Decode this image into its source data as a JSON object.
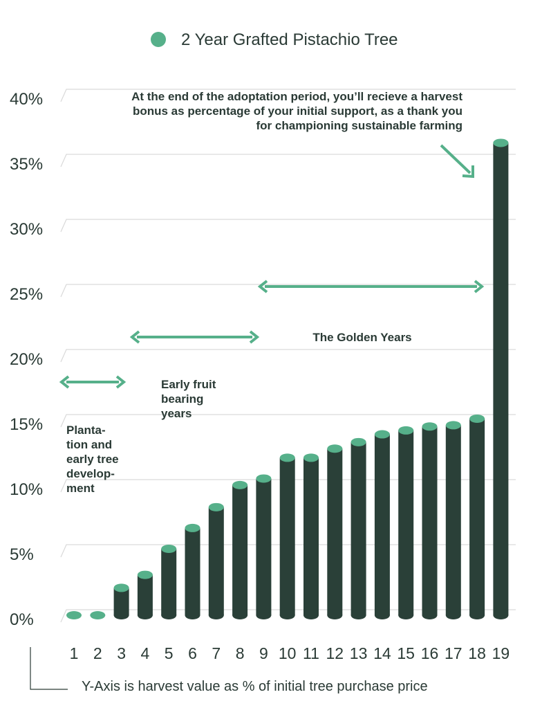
{
  "colors": {
    "bar": "#2a4038",
    "accent": "#56b08a",
    "grid": "#d9d9d9",
    "text": "#2a3a35"
  },
  "chart_data": {
    "type": "bar",
    "categories": [
      "1",
      "2",
      "3",
      "4",
      "5",
      "6",
      "7",
      "8",
      "9",
      "10",
      "11",
      "12",
      "13",
      "14",
      "15",
      "16",
      "17",
      "18",
      "19"
    ],
    "series": [
      {
        "name": "2 Year Grafted Pistachio Tree",
        "values": [
          0,
          0,
          2.0,
          3.0,
          5.0,
          6.6,
          8.2,
          9.9,
          10.4,
          12.0,
          12.0,
          12.7,
          13.2,
          13.8,
          14.1,
          14.4,
          14.5,
          15.0,
          36.2
        ]
      }
    ],
    "ylim": [
      0,
      40
    ],
    "yticks": [
      0,
      5,
      10,
      15,
      20,
      25,
      30,
      35,
      40
    ],
    "ytick_labels": [
      "0%",
      "5%",
      "10%",
      "15%",
      "20%",
      "25%",
      "30%",
      "35%",
      "40%"
    ],
    "grid": true,
    "legend_position": "top",
    "axis_note": "Y-Axis is harvest value as % of initial tree purchase price",
    "annotations": {
      "harvest_bonus": [
        "At the end of the adoptation period, you’ll recieve a harvest",
        "bonus as percentage of your initial support, as a thank you",
        "for championing sustainable farming"
      ],
      "plantation": [
        "Planta-",
        "tion and",
        "early tree",
        "develop-",
        "ment"
      ],
      "early_fruit": [
        "Early fruit",
        "bearing",
        "years"
      ],
      "golden_years": "The Golden Years"
    }
  }
}
